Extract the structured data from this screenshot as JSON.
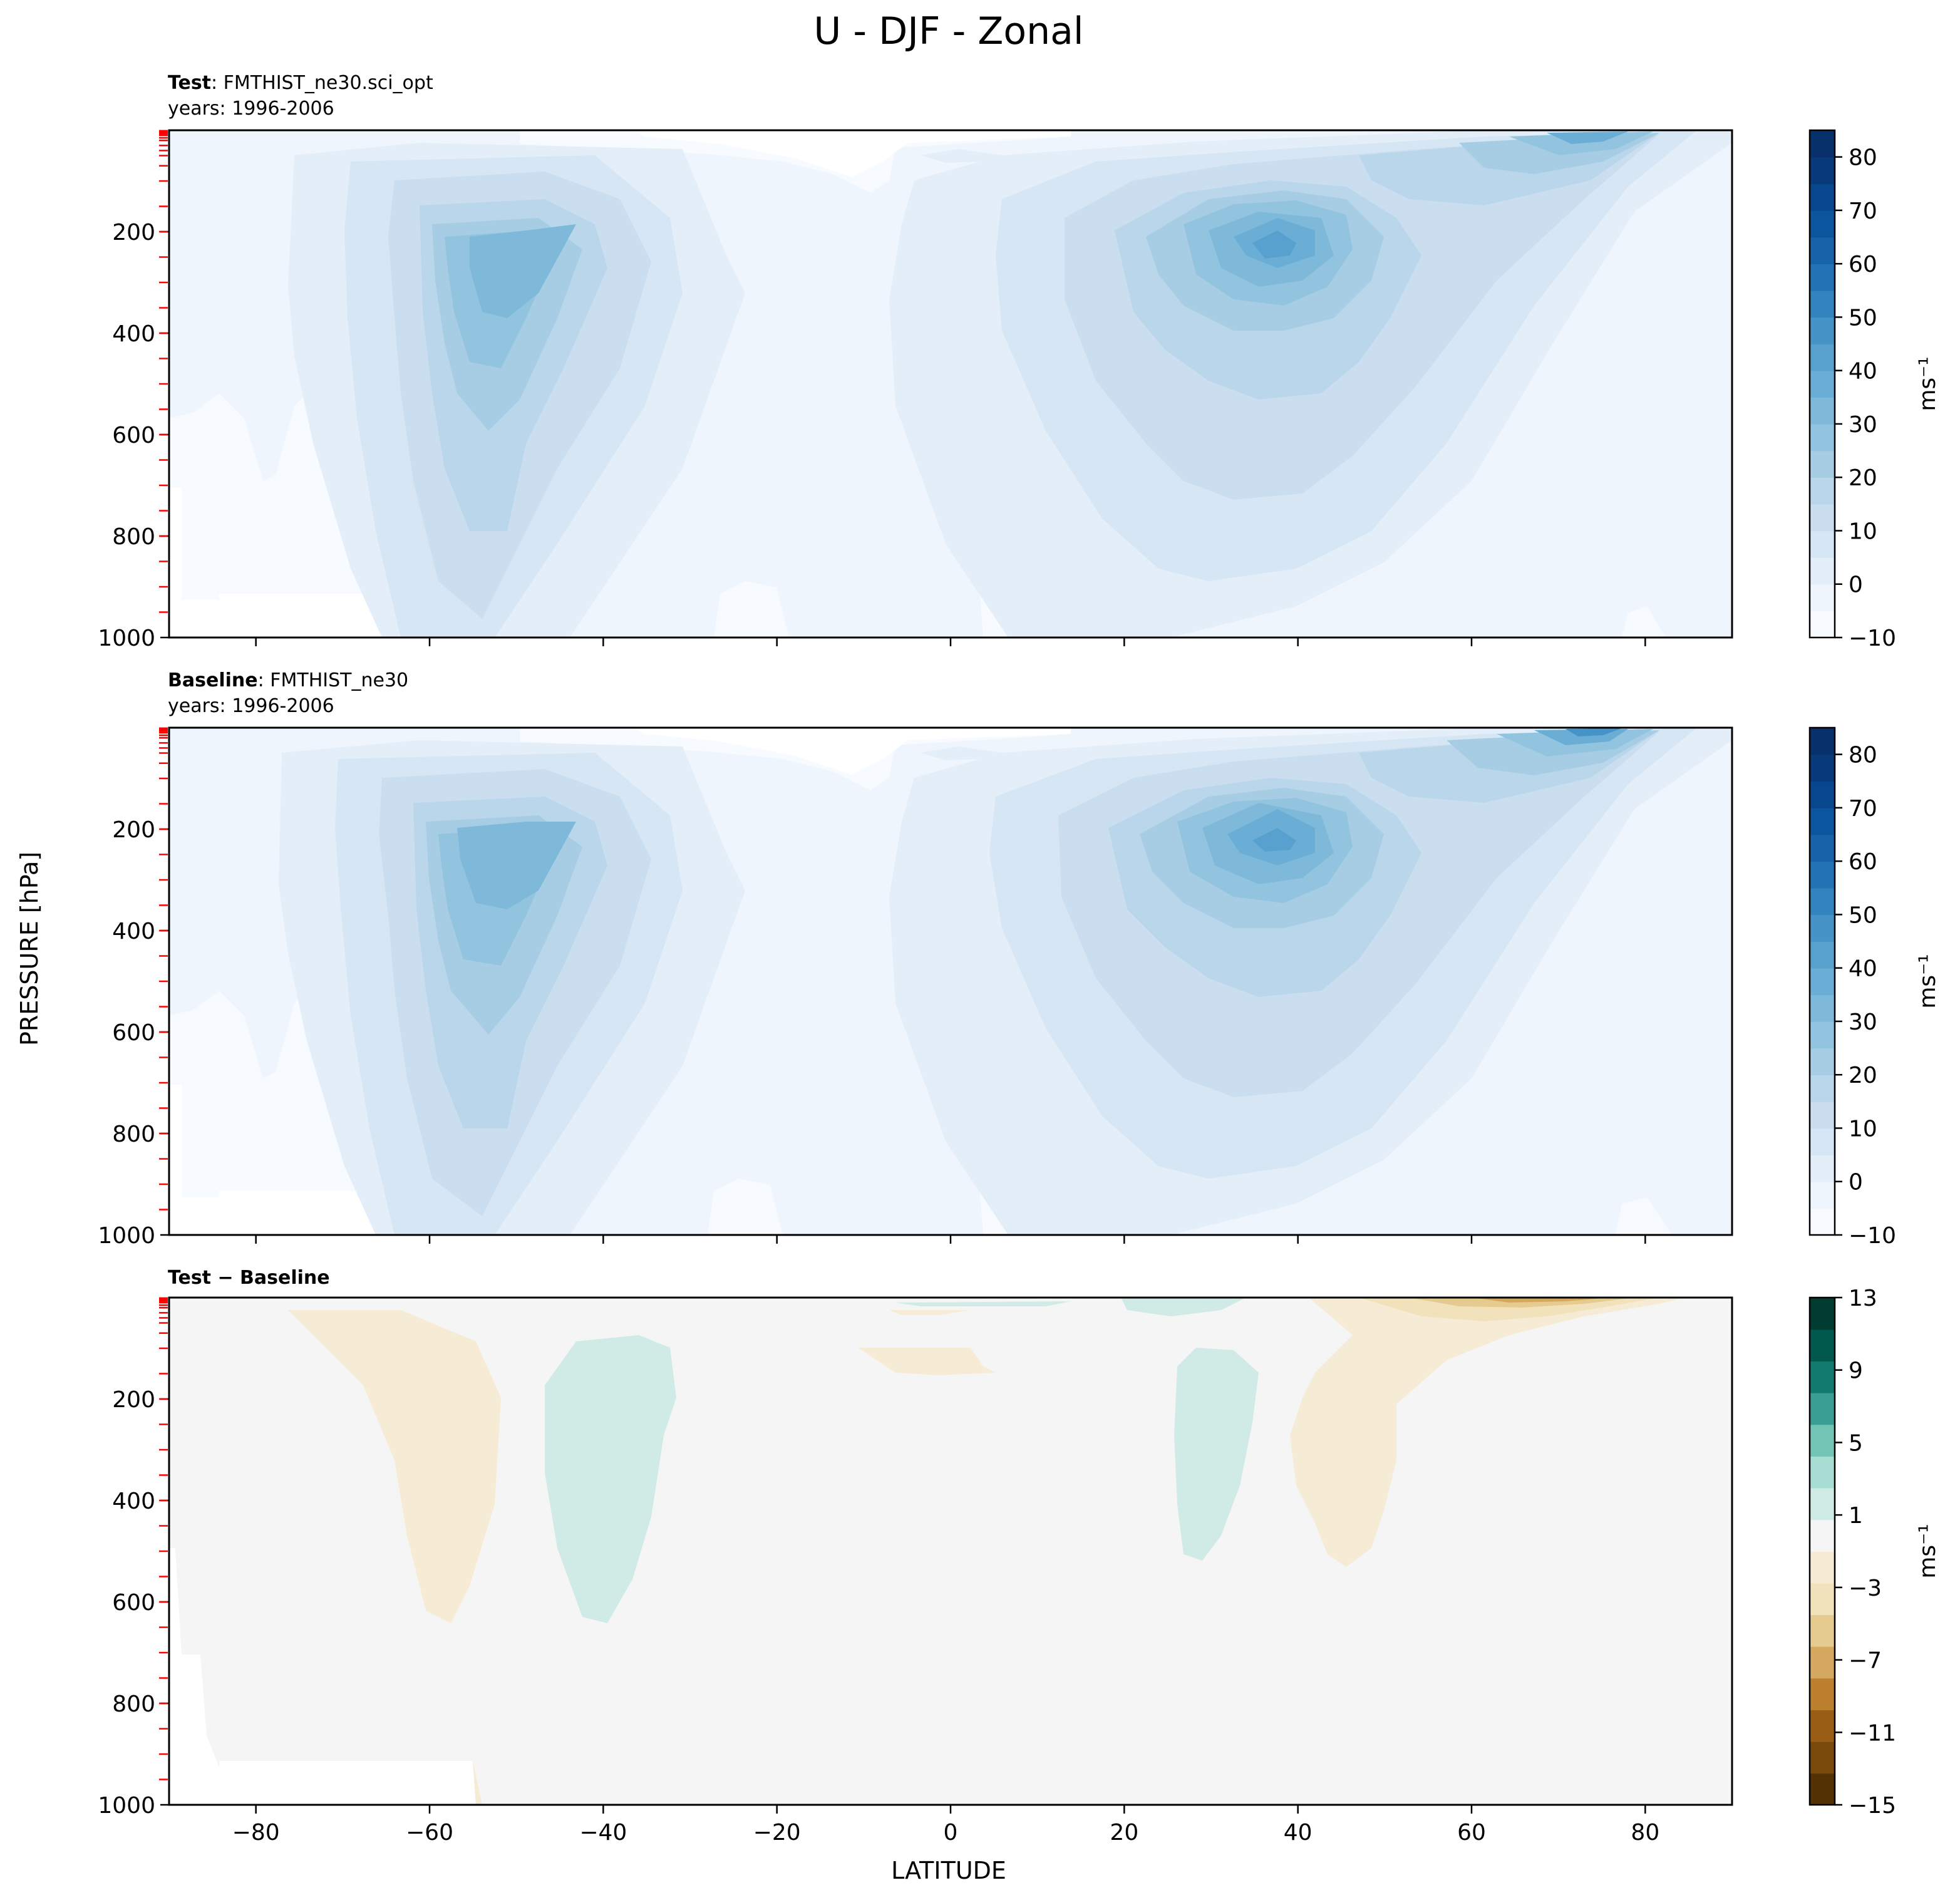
{
  "figure": {
    "title": "U - DJF - Zonal",
    "ylabel": "PRESSURE [hPa]",
    "xlabel": "LATITUDE"
  },
  "panels": [
    {
      "id": "test",
      "heading_bold": "Test",
      "heading_rest": ": FMTHIST_ne30.sci_opt",
      "years": "years: 1996-2006",
      "cbar_unit": "ms⁻¹",
      "cbar_ticks": [
        "−10",
        "0",
        "10",
        "20",
        "30",
        "40",
        "50",
        "60",
        "70",
        "80"
      ]
    },
    {
      "id": "baseline",
      "heading_bold": "Baseline",
      "heading_rest": ": FMTHIST_ne30",
      "years": "years: 1996-2006",
      "cbar_unit": "ms⁻¹",
      "cbar_ticks": [
        "−10",
        "0",
        "10",
        "20",
        "30",
        "40",
        "50",
        "60",
        "70",
        "80"
      ]
    },
    {
      "id": "diff",
      "heading_bold": "Test − Baseline",
      "heading_rest": "",
      "years": "",
      "cbar_unit": "ms⁻¹",
      "cbar_ticks": [
        "−15",
        "−11",
        "−7",
        "−3",
        "1",
        "5",
        "9",
        "13"
      ]
    }
  ],
  "chart_data": [
    {
      "type": "heatmap",
      "subtitle": "Test: FMTHIST_ne30.sci_opt, years: 1996-2006",
      "x_ticks": [
        -80,
        -60,
        -40,
        -20,
        0,
        20,
        40,
        60,
        80
      ],
      "xlim": [
        -90,
        90
      ],
      "y_ticks": [
        200,
        400,
        600,
        800,
        1000
      ],
      "ylim": [
        1000,
        0
      ],
      "contour_levels": [
        -10,
        -5,
        0,
        5,
        10,
        15,
        20,
        25,
        30,
        35,
        40,
        45,
        50,
        55,
        60,
        65,
        70,
        75,
        80,
        85
      ],
      "colormap": "Blues",
      "jets": [
        {
          "lat": -50,
          "pressure": 220,
          "max_u": 40
        },
        {
          "lat": 32,
          "pressure": 200,
          "max_u": 45
        },
        {
          "lat": 65,
          "pressure": 10,
          "max_u": 45
        }
      ]
    },
    {
      "type": "heatmap",
      "subtitle": "Baseline: FMTHIST_ne30, years: 1996-2006",
      "x_ticks": [
        -80,
        -60,
        -40,
        -20,
        0,
        20,
        40,
        60,
        80
      ],
      "xlim": [
        -90,
        90
      ],
      "y_ticks": [
        200,
        400,
        600,
        800,
        1000
      ],
      "ylim": [
        1000,
        0
      ],
      "contour_levels": [
        -10,
        -5,
        0,
        5,
        10,
        15,
        20,
        25,
        30,
        35,
        40,
        45,
        50,
        55,
        60,
        65,
        70,
        75,
        80,
        85
      ],
      "colormap": "Blues",
      "jets": [
        {
          "lat": -50,
          "pressure": 220,
          "max_u": 40
        },
        {
          "lat": 31,
          "pressure": 200,
          "max_u": 45
        },
        {
          "lat": 65,
          "pressure": 10,
          "max_u": 50
        }
      ]
    },
    {
      "type": "heatmap",
      "subtitle": "Test − Baseline",
      "x_ticks": [
        -80,
        -60,
        -40,
        -20,
        0,
        20,
        40,
        60,
        80
      ],
      "xlim": [
        -90,
        90
      ],
      "y_ticks": [
        200,
        400,
        600,
        800,
        1000
      ],
      "ylim": [
        1000,
        0
      ],
      "contour_levels": [
        -15,
        -13,
        -11,
        -9,
        -7,
        -5,
        -3,
        -1,
        1,
        3,
        5,
        7,
        9,
        11,
        13
      ],
      "colormap": "BrBG",
      "features": [
        {
          "region": "lat -75 to -55, 30-550 hPa",
          "sign": "negative",
          "range": [
            -3,
            -1
          ]
        },
        {
          "region": "lat -45 to -32, 80-570 hPa",
          "sign": "positive",
          "range": [
            1,
            3
          ]
        },
        {
          "region": "lat 26 to 36, 100-490 hPa",
          "sign": "positive",
          "range": [
            1,
            3
          ]
        },
        {
          "region": "lat 45 to 85, 0-490 hPa",
          "sign": "negative",
          "range": [
            -5,
            -1
          ]
        }
      ]
    }
  ],
  "colors": {
    "blues": [
      "#f7fbff",
      "#eef5fc",
      "#e3eef9",
      "#d6e6f4",
      "#cadef0",
      "#bad6eb",
      "#a6cde4",
      "#93c4df",
      "#7fb9da",
      "#6aaed6",
      "#58a1cf",
      "#4694c7",
      "#3383be",
      "#2272b5",
      "#1663aa",
      "#0b559f",
      "#08478d",
      "#083a7a",
      "#08306b"
    ],
    "brbg": [
      "#543005",
      "#7a490c",
      "#9a5d16",
      "#bc7f2d",
      "#d4a85e",
      "#e5cb8f",
      "#f2e2bc",
      "#f6ebd4",
      "#f4f5f4",
      "#d0ebe6",
      "#a8ddd3",
      "#74c4b6",
      "#3b9e94",
      "#137a70",
      "#01584c",
      "#003c30"
    ],
    "diff_bg": "#f4f5f4",
    "tick_red": "#ff0000"
  }
}
